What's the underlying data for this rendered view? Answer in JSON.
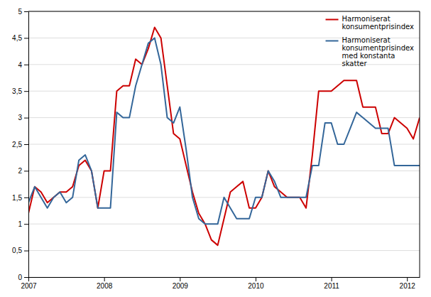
{
  "chart_data": {
    "type": "line",
    "categories": [
      "2007",
      null,
      null,
      null,
      null,
      null,
      null,
      null,
      null,
      null,
      null,
      null,
      "2008",
      null,
      null,
      null,
      null,
      null,
      null,
      null,
      null,
      null,
      null,
      null,
      "2009",
      null,
      null,
      null,
      null,
      null,
      null,
      null,
      null,
      null,
      null,
      null,
      "2010",
      null,
      null,
      null,
      null,
      null,
      null,
      null,
      null,
      null,
      null,
      null,
      "2011",
      null,
      null,
      null,
      null,
      null,
      null,
      null,
      null,
      null,
      null,
      null,
      "2012",
      null,
      null
    ],
    "series": [
      {
        "name": "Harmoniserat\nkonsumentprisindex",
        "color": "#cc0000",
        "values": [
          1.2,
          1.7,
          1.6,
          1.4,
          1.5,
          1.6,
          1.6,
          1.7,
          2.1,
          2.2,
          2.0,
          1.3,
          2.0,
          2.0,
          3.5,
          3.6,
          3.6,
          4.1,
          4.0,
          4.3,
          4.7,
          4.5,
          3.6,
          2.7,
          2.6,
          2.1,
          1.6,
          1.2,
          1.0,
          0.7,
          0.6,
          1.1,
          1.6,
          1.7,
          1.8,
          1.3,
          1.3,
          1.5,
          2.0,
          1.7,
          1.6,
          1.5,
          1.5,
          1.5,
          1.3,
          2.3,
          3.5,
          3.5,
          3.5,
          3.6,
          3.7,
          3.7,
          3.7,
          3.2,
          3.2,
          3.2,
          2.7,
          2.7,
          3.0,
          2.9,
          2.8,
          2.6,
          3.0
        ]
      },
      {
        "name": "Harmoniserat\nkonsumentprisindex\nmed konstanta\nskatter",
        "color": "#336699",
        "values": [
          1.4,
          1.7,
          1.5,
          1.3,
          1.5,
          1.6,
          1.4,
          1.5,
          2.2,
          2.3,
          2.0,
          1.3,
          1.3,
          1.3,
          3.1,
          3.0,
          3.0,
          3.6,
          4.0,
          4.4,
          4.5,
          4.0,
          3.0,
          2.9,
          3.2,
          2.4,
          1.5,
          1.1,
          1.0,
          1.0,
          1.0,
          1.5,
          1.3,
          1.1,
          1.1,
          1.1,
          1.5,
          1.5,
          2.0,
          1.8,
          1.5,
          1.5,
          1.5,
          1.5,
          1.5,
          2.1,
          2.1,
          2.9,
          2.9,
          2.5,
          2.5,
          2.8,
          3.1,
          3.0,
          2.9,
          2.8,
          2.8,
          2.8,
          2.1,
          2.1,
          2.1,
          2.1,
          2.1
        ]
      }
    ],
    "ylim": [
      0,
      5
    ],
    "yticks": [
      0,
      {
        "value": 0.5,
        "label": "0,5"
      },
      1,
      {
        "value": 1.5,
        "label": "1,5"
      },
      2,
      {
        "value": 2.5,
        "label": "2,5"
      },
      3,
      {
        "value": 3.5,
        "label": "3,5"
      },
      4,
      {
        "value": 4.5,
        "label": "4,5"
      },
      5
    ],
    "grid": true,
    "legend": "upper right"
  }
}
